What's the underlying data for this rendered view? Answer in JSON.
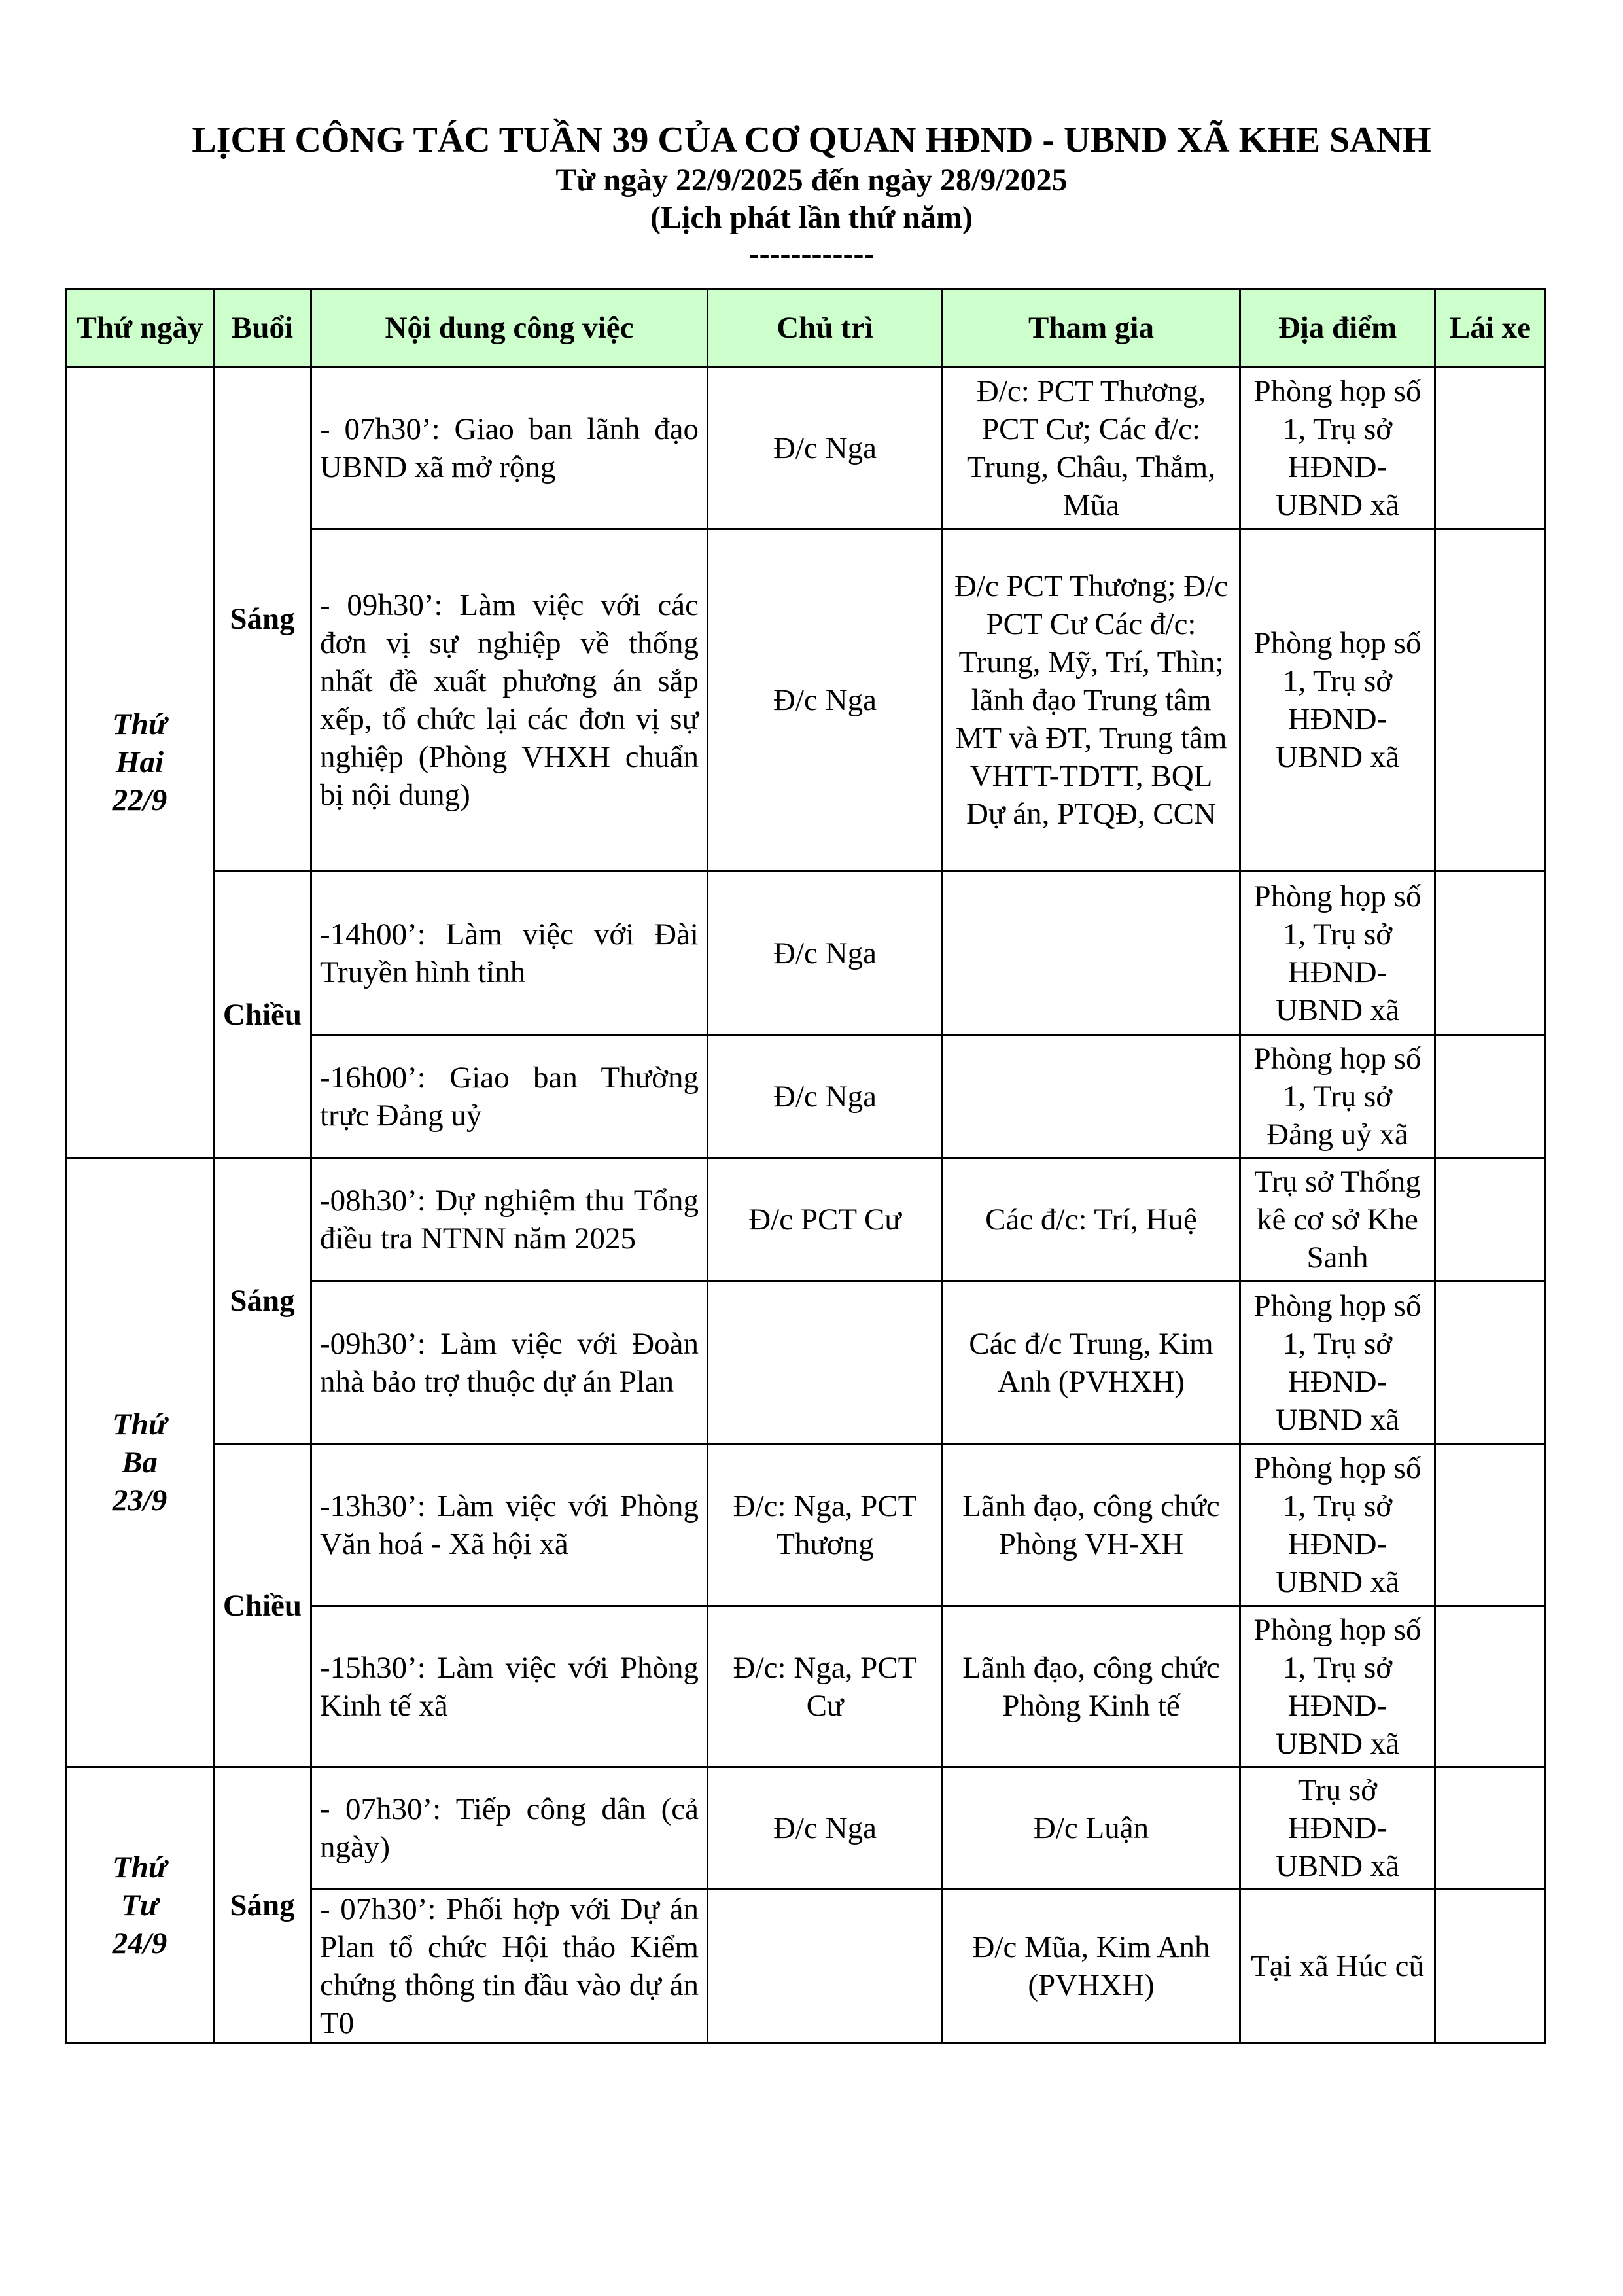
{
  "title": "LỊCH CÔNG TÁC TUẦN 39 CỦA CƠ QUAN HĐND - UBND XÃ KHE SANH",
  "subtitle": "Từ ngày 22/9/2025 đến ngày 28/9/2025",
  "edition": "(Lịch phát lần thứ năm)",
  "separator": "------------",
  "header_color": "#ccffcc",
  "columns": [
    "Thứ ngày",
    "Buổi",
    "Nội dung công việc",
    "Chủ trì",
    "Tham gia",
    "Địa điểm",
    "Lái xe"
  ],
  "days": [
    {
      "label": "Thứ Hai 22/9",
      "sessions": [
        {
          "label": "Sáng",
          "items": [
            {
              "content": "- 07h30’:  Giao ban lãnh đạo UBND xã mở rộng",
              "chair": "Đ/c Nga",
              "participants": "Đ/c: PCT Thương, PCT Cư; Các đ/c: Trung, Châu, Thắm, Mũa",
              "location": "Phòng họp số 1, Trụ sở HĐND-UBND xã",
              "driver": ""
            },
            {
              "content": "- 09h30’: Làm việc với các đơn vị sự nghiệp về thống nhất đề xuất phương án sắp xếp, tổ chức lại các đơn vị sự nghiệp (Phòng VHXH chuẩn bị nội dung)",
              "chair": "Đ/c Nga",
              "participants": "Đ/c PCT Thương; Đ/c PCT Cư Các đ/c: Trung, Mỹ, Trí, Thìn; lãnh đạo Trung tâm MT và ĐT, Trung tâm VHTT-TDTT, BQL Dự án, PTQĐ, CCN",
              "location": "Phòng họp số 1, Trụ sở HĐND-UBND xã",
              "driver": ""
            }
          ]
        },
        {
          "label": "Chiều",
          "items": [
            {
              "content": "-14h00’: Làm việc với Đài Truyền hình tỉnh",
              "chair": "Đ/c Nga",
              "participants": "",
              "location": "Phòng họp số 1, Trụ sở HĐND-UBND xã",
              "driver": ""
            },
            {
              "content": "-16h00’: Giao ban Thường trực Đảng uỷ",
              "chair": "Đ/c Nga",
              "participants": "",
              "location": "Phòng họp số 1, Trụ sở Đảng uỷ xã",
              "driver": ""
            }
          ]
        }
      ]
    },
    {
      "label": "Thứ Ba 23/9",
      "sessions": [
        {
          "label": "Sáng",
          "items": [
            {
              "content": "-08h30’: Dự nghiệm thu Tổng điều tra NTNN năm 2025",
              "chair": "Đ/c PCT Cư",
              "participants": "Các đ/c: Trí, Huệ",
              "location": "Trụ sở Thống kê cơ sở Khe Sanh",
              "driver": ""
            },
            {
              "content": "-09h30’: Làm việc với Đoàn nhà bảo trợ thuộc dự án Plan",
              "chair": "",
              "participants": "Các đ/c Trung, Kim Anh (PVHXH)",
              "location": "Phòng họp số 1, Trụ sở HĐND-UBND xã",
              "driver": ""
            }
          ]
        },
        {
          "label": "Chiều",
          "items": [
            {
              "content": "-13h30’: Làm việc với Phòng Văn hoá - Xã hội xã",
              "chair": "Đ/c: Nga, PCT Thương",
              "participants": "Lãnh đạo, công chức Phòng VH-XH",
              "location": "Phòng họp số 1, Trụ sở HĐND-UBND xã",
              "driver": ""
            },
            {
              "content": "-15h30’: Làm việc với Phòng Kinh tế xã",
              "chair": "Đ/c: Nga, PCT Cư",
              "participants": "Lãnh đạo, công chức Phòng Kinh tế",
              "location": "Phòng họp số 1, Trụ sở HĐND-UBND xã",
              "driver": ""
            }
          ]
        }
      ]
    },
    {
      "label": "Thứ Tư 24/9",
      "sessions": [
        {
          "label": "Sáng",
          "items": [
            {
              "content": "- 07h30’: Tiếp công dân (cả ngày)",
              "chair": "Đ/c Nga",
              "participants": "Đ/c Luận",
              "location": "Trụ sở HĐND-UBND xã",
              "driver": ""
            },
            {
              "content": "- 07h30’: Phối hợp với Dự án Plan tổ chức Hội thảo Kiểm chứng thông tin đầu vào dự án T0",
              "chair": "",
              "participants": "Đ/c Mũa, Kim Anh (PVHXH)",
              "location": "Tại xã Húc cũ",
              "driver": ""
            }
          ]
        }
      ]
    }
  ]
}
